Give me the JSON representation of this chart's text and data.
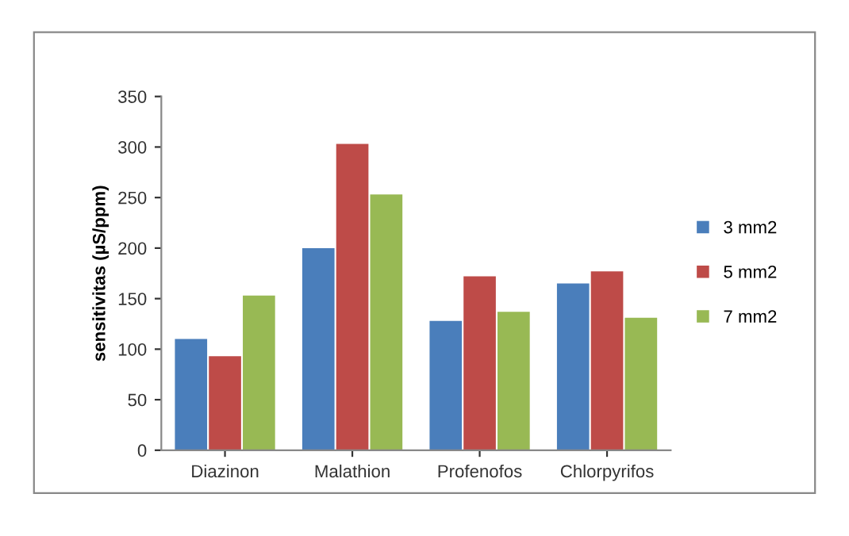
{
  "chart_data": {
    "type": "bar",
    "ylabel": "sensitivitas (µS/ppm)",
    "categories": [
      "Diazinon",
      "Malathion",
      "Profenofos",
      "Chlorpyrifos"
    ],
    "series": [
      {
        "name": "3 mm2",
        "color": "#4a7ebb",
        "values": [
          110,
          200,
          128,
          165
        ]
      },
      {
        "name": "5 mm2",
        "color": "#be4b48",
        "values": [
          93,
          303,
          172,
          177
        ]
      },
      {
        "name": "7 mm2",
        "color": "#98b954",
        "values": [
          153,
          253,
          137,
          131
        ]
      }
    ],
    "ylim": [
      0,
      350
    ],
    "yticks": [
      0,
      50,
      100,
      150,
      200,
      250,
      300,
      350
    ],
    "grid": false,
    "legend": "right"
  }
}
